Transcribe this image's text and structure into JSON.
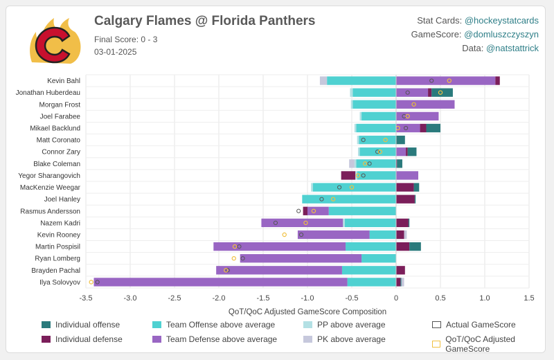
{
  "header": {
    "title": "Calgary Flames @ Florida Panthers",
    "final_score": "Final Score: 0 - 3",
    "date": "03-01-2025"
  },
  "credits": [
    {
      "label": "Stat Cards: ",
      "handle": "@hockeystatcards"
    },
    {
      "label": "GameScore: ",
      "handle": "@domluszczyszyn"
    },
    {
      "label": "Data: ",
      "handle": "@natstattrick"
    }
  ],
  "colors": {
    "ind_off": "#2a7a7c",
    "ind_def": "#7b1e5a",
    "team_off": "#4fd1d1",
    "team_def": "#9966c3",
    "pp": "#b3e0e4",
    "pk": "#c6c8dc",
    "actual": "#555555",
    "adjusted": "#f0c040",
    "logo_red": "#c8102e",
    "logo_yellow": "#f1be48"
  },
  "chart_data": {
    "type": "bar",
    "stacked": true,
    "orientation": "horizontal",
    "xlabel": "QoT/QoC Adjusted GameScore Composition",
    "xlim": [
      -3.5,
      1.5
    ],
    "xticks": [
      "-3.5",
      "-3.0",
      "-2.5",
      "-2.0",
      "-1.5",
      "-1.0",
      "-0.5",
      "0",
      "0.5",
      "1.0",
      "1.5"
    ],
    "grid": true,
    "legend_position": "bottom",
    "categories": [
      "Kevin Bahl",
      "Jonathan Huberdeau",
      "Morgan Frost",
      "Joel Farabee",
      "Mikael Backlund",
      "Matt Coronato",
      "Connor Zary",
      "Blake Coleman",
      "Yegor Sharangovich",
      "MacKenzie Weegar",
      "Joel Hanley",
      "Rasmus Andersson",
      "Nazem Kadri",
      "Kevin Rooney",
      "Martin Pospisil",
      "Ryan Lomberg",
      "Brayden Pachal",
      "Ilya Solovyov"
    ],
    "series": [
      {
        "name": "Individual offense",
        "values": [
          0.0,
          0.24,
          0.0,
          0.0,
          0.16,
          0.1,
          0.1,
          0.06,
          0.0,
          0.06,
          0.01,
          0.0,
          0.01,
          0.0,
          0.13,
          0.0,
          0.0,
          0.01
        ]
      },
      {
        "name": "Individual defense",
        "values": [
          0.05,
          0.04,
          0.0,
          0.0,
          0.07,
          0.0,
          0.02,
          0.01,
          -0.16,
          0.2,
          0.21,
          -0.05,
          0.14,
          0.09,
          0.15,
          0.0,
          0.1,
          0.05
        ]
      },
      {
        "name": "Team Offense above average",
        "values": [
          -0.78,
          -0.49,
          -0.49,
          -0.39,
          -0.45,
          -0.42,
          -0.41,
          -0.45,
          -0.44,
          -0.94,
          -1.06,
          -0.76,
          -0.58,
          -0.3,
          -0.57,
          -0.39,
          -0.61,
          -0.55
        ]
      },
      {
        "name": "Team Defense above average",
        "values": [
          1.12,
          0.36,
          0.66,
          0.48,
          0.27,
          0.0,
          0.11,
          0.0,
          0.25,
          0.0,
          0.0,
          -0.24,
          -0.92,
          -0.81,
          -1.49,
          -1.37,
          -1.42,
          -2.86
        ]
      },
      {
        "name": "PP above average",
        "values": [
          0.0,
          -0.03,
          -0.02,
          -0.02,
          -0.02,
          -0.02,
          -0.02,
          -0.02,
          -0.02,
          -0.02,
          0.0,
          0.0,
          -0.02,
          0.0,
          0.0,
          0.0,
          0.0,
          0.0
        ]
      },
      {
        "name": "PK above average",
        "values": [
          -0.08,
          0.0,
          0.0,
          0.0,
          0.0,
          0.0,
          0.0,
          -0.06,
          0.0,
          0.0,
          0.0,
          0.0,
          0.0,
          0.03,
          0.0,
          0.0,
          0.0,
          0.03
        ]
      }
    ],
    "actual_gamescore": [
      0.4,
      0.13,
      0.2,
      0.09,
      0.11,
      -0.37,
      -0.21,
      -0.3,
      -0.37,
      -0.64,
      -0.84,
      -1.1,
      -1.36,
      -1.07,
      -1.77,
      -1.73,
      -1.9,
      -3.37
    ],
    "adjusted_gamescore": [
      0.6,
      0.5,
      0.2,
      0.13,
      0.02,
      -0.12,
      -0.18,
      -0.35,
      -0.43,
      -0.5,
      -0.71,
      -0.93,
      -1.02,
      -1.26,
      -1.82,
      -1.83,
      -1.92,
      -3.44
    ],
    "legend": [
      "Individual offense",
      "Team Offense above average",
      "PP above average",
      "Actual GameScore",
      "Individual defense",
      "Team Defense above average",
      "PK above average",
      "QoT/QoC Adjusted GameScore"
    ]
  }
}
